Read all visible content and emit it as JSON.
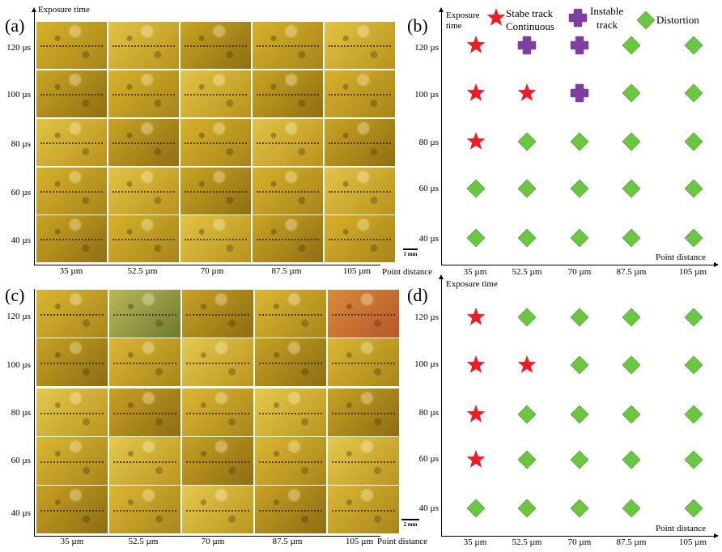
{
  "figure": {
    "panel_labels": [
      "(a)",
      "(b)",
      "(c)",
      "(d)"
    ],
    "y_axis_title": "Exposure time",
    "y_axis_title_b": [
      "Exposure",
      "time"
    ],
    "x_axis_title": "Point distance",
    "exposure_times": [
      "120 µs",
      "100 µs",
      "80 µs",
      "60 µs",
      "40 µs"
    ],
    "point_distances": [
      "35 µm",
      "52.5 µm",
      "70 µm",
      "87.5 µm",
      "105 µm"
    ],
    "scale_a": "1 mm",
    "scale_c": "2 mm",
    "legend": {
      "stable_line1": "Stabe track",
      "stable_line2": "Continuous",
      "instable_line1": "Instable",
      "instable_line2": "track",
      "distortion": "Distortion"
    },
    "colors": {
      "stable": "#ee1c24",
      "instable": "#7f3fa0",
      "distortion": "#6cc644",
      "micrograph": "#c9a51c"
    }
  },
  "chart_data": [
    {
      "type": "scatter",
      "panel": "(b)",
      "xlabel": "Point distance",
      "ylabel": "Exposure time",
      "x_categories": [
        "35 µm",
        "52.5 µm",
        "70 µm",
        "87.5 µm",
        "105 µm"
      ],
      "y_categories": [
        "120 µs",
        "100 µs",
        "80 µs",
        "60 µs",
        "40 µs"
      ],
      "grid": [
        [
          "stable",
          "instable",
          "instable",
          "distortion",
          "distortion"
        ],
        [
          "stable",
          "stable",
          "instable",
          "distortion",
          "distortion"
        ],
        [
          "stable",
          "distortion",
          "distortion",
          "distortion",
          "distortion"
        ],
        [
          "distortion",
          "distortion",
          "distortion",
          "distortion",
          "distortion"
        ],
        [
          "distortion",
          "distortion",
          "distortion",
          "distortion",
          "distortion"
        ]
      ]
    },
    {
      "type": "scatter",
      "panel": "(d)",
      "xlabel": "Point distance",
      "ylabel": "Exposure time",
      "x_categories": [
        "35 µm",
        "52.5 µm",
        "70 µm",
        "87.5 µm",
        "105 µm"
      ],
      "y_categories": [
        "120 µs",
        "100 µs",
        "80 µs",
        "60 µs",
        "40 µs"
      ],
      "grid": [
        [
          "stable",
          "distortion",
          "distortion",
          "distortion",
          "distortion"
        ],
        [
          "stable",
          "stable",
          "distortion",
          "distortion",
          "distortion"
        ],
        [
          "stable",
          "distortion",
          "distortion",
          "distortion",
          "distortion"
        ],
        [
          "stable",
          "distortion",
          "distortion",
          "distortion",
          "distortion"
        ],
        [
          "distortion",
          "distortion",
          "distortion",
          "distortion",
          "distortion"
        ]
      ]
    }
  ]
}
